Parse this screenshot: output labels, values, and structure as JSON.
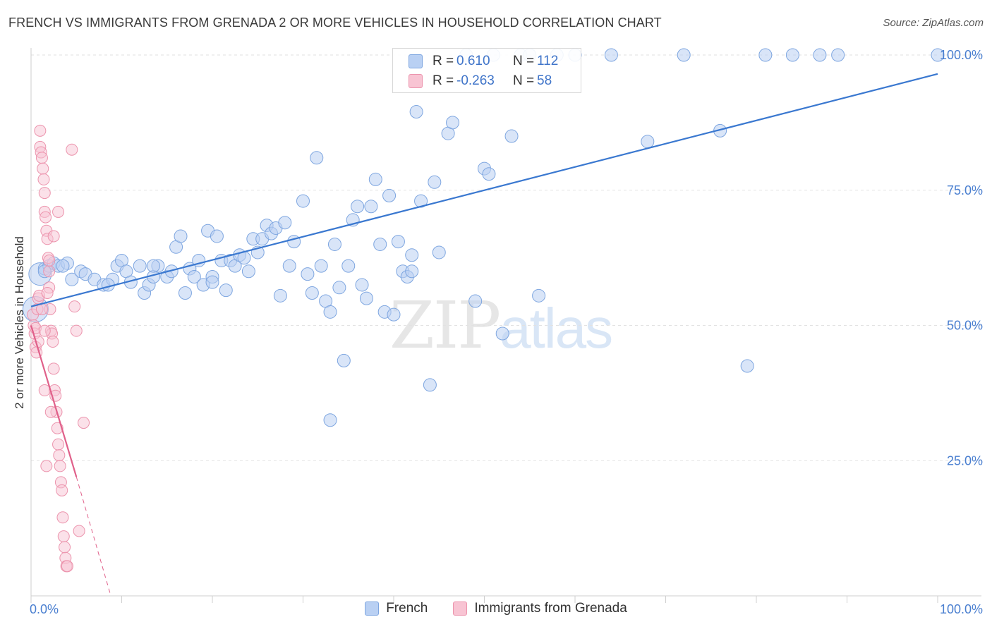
{
  "title": "FRENCH VS IMMIGRANTS FROM GRENADA 2 OR MORE VEHICLES IN HOUSEHOLD CORRELATION CHART",
  "source": "Source: ZipAtlas.com",
  "watermark": {
    "zip": "ZIP",
    "atlas": "atlas"
  },
  "legend": {
    "r_label": "R =",
    "n_label": "N =",
    "french": {
      "r": "0.610",
      "n": "112"
    },
    "grenada": {
      "r": "-0.263",
      "n": "58"
    }
  },
  "bottom_legend": {
    "french": "French",
    "grenada": "Immigrants from Grenada"
  },
  "colors": {
    "french_fill": "#b9d0f3",
    "french_line": "#3a78d0",
    "grenada_fill": "#f8c4d3",
    "grenada_line": "#e0608a"
  },
  "chart_data": {
    "type": "scatter",
    "title": "FRENCH VS IMMIGRANTS FROM GRENADA 2 OR MORE VEHICLES IN HOUSEHOLD CORRELATION CHART",
    "xlabel": "",
    "ylabel": "2 or more Vehicles in Household",
    "xlim": [
      0,
      100
    ],
    "ylim": [
      0,
      100
    ],
    "x_tick_labels": [
      "0.0%",
      "100.0%"
    ],
    "y_ticks": [
      25,
      50,
      75,
      100
    ],
    "y_tick_labels": [
      "25.0%",
      "50.0%",
      "75.0%",
      "100.0%"
    ],
    "series": [
      {
        "name": "French",
        "trend": {
          "x": [
            0,
            100
          ],
          "y": [
            53.5,
            96.5
          ]
        },
        "points": [
          [
            0.5,
            53
          ],
          [
            1.0,
            59.5
          ],
          [
            1.5,
            60.5
          ],
          [
            2.0,
            61
          ],
          [
            2.5,
            61.5
          ],
          [
            3.0,
            61
          ],
          [
            4.0,
            61.5
          ],
          [
            4.5,
            58.5
          ],
          [
            5.5,
            60
          ],
          [
            6.0,
            59.5
          ],
          [
            7.0,
            58.5
          ],
          [
            8.0,
            57.5
          ],
          [
            9.0,
            58.5
          ],
          [
            9.5,
            61
          ],
          [
            10.0,
            62
          ],
          [
            10.5,
            60
          ],
          [
            11.0,
            58
          ],
          [
            12.0,
            61
          ],
          [
            12.5,
            56
          ],
          [
            13.0,
            57.5
          ],
          [
            13.5,
            59
          ],
          [
            14.0,
            61
          ],
          [
            15.0,
            59
          ],
          [
            15.5,
            60
          ],
          [
            16.0,
            64.5
          ],
          [
            16.5,
            66.5
          ],
          [
            17.0,
            56
          ],
          [
            17.5,
            60.5
          ],
          [
            18.0,
            59
          ],
          [
            18.5,
            62
          ],
          [
            19.0,
            57.5
          ],
          [
            19.5,
            67.5
          ],
          [
            20.0,
            59
          ],
          [
            20.5,
            66.5
          ],
          [
            21.0,
            62
          ],
          [
            21.5,
            56.5
          ],
          [
            22.0,
            62
          ],
          [
            22.5,
            61
          ],
          [
            23.0,
            63
          ],
          [
            23.5,
            62.5
          ],
          [
            24.0,
            60
          ],
          [
            24.5,
            66
          ],
          [
            25.0,
            63.5
          ],
          [
            25.5,
            66
          ],
          [
            26.0,
            68.5
          ],
          [
            26.5,
            67
          ],
          [
            27.0,
            68
          ],
          [
            27.5,
            55.5
          ],
          [
            28.0,
            69
          ],
          [
            28.5,
            61
          ],
          [
            29.0,
            65.5
          ],
          [
            30.0,
            73
          ],
          [
            30.5,
            59.5
          ],
          [
            31.0,
            56
          ],
          [
            31.5,
            81
          ],
          [
            32.0,
            61
          ],
          [
            32.5,
            54.5
          ],
          [
            33.0,
            52.5
          ],
          [
            33.5,
            65
          ],
          [
            34.0,
            57
          ],
          [
            34.5,
            43.5
          ],
          [
            35.0,
            61
          ],
          [
            35.5,
            69.5
          ],
          [
            36.0,
            72
          ],
          [
            36.5,
            57.5
          ],
          [
            37.0,
            55
          ],
          [
            37.5,
            72
          ],
          [
            38.0,
            77
          ],
          [
            38.5,
            65
          ],
          [
            39.0,
            52.5
          ],
          [
            39.5,
            74
          ],
          [
            40.0,
            52
          ],
          [
            40.5,
            65.5
          ],
          [
            41.0,
            60
          ],
          [
            41.5,
            59
          ],
          [
            42.0,
            63
          ],
          [
            42.5,
            89.5
          ],
          [
            43.0,
            73
          ],
          [
            44.0,
            39
          ],
          [
            44.5,
            76.5
          ],
          [
            45.0,
            63.5
          ],
          [
            46.0,
            85.5
          ],
          [
            46.5,
            87.5
          ],
          [
            48.0,
            100
          ],
          [
            49.0,
            54.5
          ],
          [
            50.0,
            79
          ],
          [
            50.5,
            78
          ],
          [
            51.0,
            100
          ],
          [
            52.0,
            48.5
          ],
          [
            53.0,
            85
          ],
          [
            54.0,
            100
          ],
          [
            56.0,
            55.5
          ],
          [
            58.0,
            100
          ],
          [
            60.0,
            100
          ],
          [
            64.0,
            100
          ],
          [
            68.0,
            84
          ],
          [
            72.0,
            100
          ],
          [
            76.0,
            86
          ],
          [
            79.0,
            42.5
          ],
          [
            81.0,
            100
          ],
          [
            84.0,
            100
          ],
          [
            87.0,
            100
          ],
          [
            89.0,
            100
          ],
          [
            100,
            100
          ],
          [
            1.5,
            60
          ],
          [
            3.5,
            61
          ],
          [
            8.5,
            57.5
          ],
          [
            13.5,
            61
          ],
          [
            20.0,
            58
          ],
          [
            33.0,
            32.5
          ],
          [
            42.0,
            60
          ],
          [
            55.0,
            100
          ]
        ]
      },
      {
        "name": "Immigrants from Grenada",
        "trend": {
          "x": [
            0,
            5.0
          ],
          "y": [
            50,
            22
          ]
        },
        "trend_dashed": {
          "x": [
            5.0,
            8.8
          ],
          "y": [
            22,
            0
          ]
        },
        "points": [
          [
            0.2,
            52
          ],
          [
            0.3,
            50
          ],
          [
            0.4,
            48.5
          ],
          [
            0.5,
            49.5
          ],
          [
            0.5,
            46
          ],
          [
            0.6,
            45
          ],
          [
            0.7,
            53
          ],
          [
            0.8,
            55
          ],
          [
            0.9,
            55.5
          ],
          [
            1.0,
            86
          ],
          [
            1.0,
            83
          ],
          [
            1.1,
            82
          ],
          [
            1.2,
            81
          ],
          [
            1.3,
            79
          ],
          [
            1.4,
            77
          ],
          [
            1.5,
            74.5
          ],
          [
            1.5,
            71
          ],
          [
            1.6,
            70
          ],
          [
            1.7,
            67.5
          ],
          [
            1.8,
            66
          ],
          [
            1.9,
            62.5
          ],
          [
            2.0,
            60
          ],
          [
            2.0,
            57
          ],
          [
            2.1,
            53
          ],
          [
            2.2,
            49
          ],
          [
            2.3,
            48.5
          ],
          [
            2.4,
            47
          ],
          [
            2.5,
            42
          ],
          [
            2.6,
            38
          ],
          [
            2.7,
            37
          ],
          [
            2.8,
            34
          ],
          [
            2.9,
            31
          ],
          [
            3.0,
            28
          ],
          [
            3.1,
            26
          ],
          [
            3.2,
            24
          ],
          [
            3.3,
            21
          ],
          [
            3.4,
            19.5
          ],
          [
            3.5,
            14.5
          ],
          [
            3.6,
            11
          ],
          [
            3.7,
            9
          ],
          [
            3.8,
            7
          ],
          [
            3.9,
            5.5
          ],
          [
            4.0,
            5.5
          ],
          [
            4.5,
            82.5
          ],
          [
            4.8,
            53.5
          ],
          [
            5.0,
            49
          ],
          [
            5.3,
            12
          ],
          [
            5.8,
            32
          ],
          [
            1.2,
            53
          ],
          [
            0.8,
            47
          ],
          [
            1.8,
            56
          ],
          [
            2.5,
            66.5
          ],
          [
            3.0,
            71
          ],
          [
            1.5,
            38
          ],
          [
            2.2,
            34
          ],
          [
            1.7,
            24
          ],
          [
            2.0,
            62
          ],
          [
            1.5,
            49
          ]
        ]
      }
    ]
  }
}
